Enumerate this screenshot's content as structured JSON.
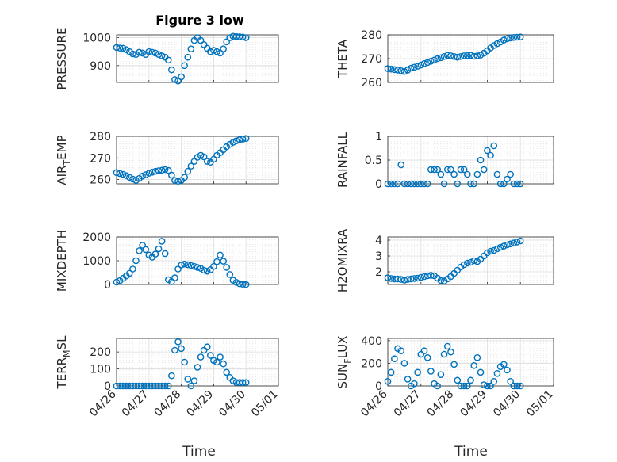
{
  "figure": {
    "title": "Figure 3 low",
    "xlabel": "Time"
  },
  "chart_data": [
    {
      "type": "scatter",
      "ylabel": "PRESSURE",
      "ylim": [
        840,
        1010
      ],
      "yticks": [
        900,
        1000
      ],
      "xlim": [
        0,
        5
      ],
      "grid": true,
      "x": [
        0,
        0.1,
        0.2,
        0.3,
        0.4,
        0.5,
        0.6,
        0.7,
        0.8,
        0.9,
        1.0,
        1.1,
        1.2,
        1.3,
        1.4,
        1.5,
        1.6,
        1.7,
        1.8,
        1.9,
        2.0,
        2.1,
        2.2,
        2.3,
        2.4,
        2.5,
        2.6,
        2.7,
        2.8,
        2.9,
        3.0,
        3.1,
        3.2,
        3.3,
        3.4,
        3.5,
        3.6,
        3.7,
        3.8,
        3.9,
        4.0
      ],
      "y": [
        965,
        963,
        962,
        957,
        950,
        942,
        940,
        948,
        945,
        940,
        950,
        948,
        945,
        940,
        935,
        930,
        920,
        885,
        850,
        845,
        860,
        900,
        930,
        960,
        990,
        1000,
        990,
        975,
        962,
        950,
        955,
        950,
        945,
        960,
        985,
        1000,
        1005,
        1004,
        1003,
        1002,
        1000
      ]
    },
    {
      "type": "scatter",
      "ylabel": "THETA",
      "ylim": [
        260,
        280
      ],
      "yticks": [
        260,
        270,
        280
      ],
      "xlim": [
        0,
        5
      ],
      "grid": true,
      "x": [
        0,
        0.1,
        0.2,
        0.3,
        0.4,
        0.5,
        0.6,
        0.7,
        0.8,
        0.9,
        1.0,
        1.1,
        1.2,
        1.3,
        1.4,
        1.5,
        1.6,
        1.7,
        1.8,
        1.9,
        2.0,
        2.1,
        2.2,
        2.3,
        2.4,
        2.5,
        2.6,
        2.7,
        2.8,
        2.9,
        3.0,
        3.1,
        3.2,
        3.3,
        3.4,
        3.5,
        3.6,
        3.7,
        3.8,
        3.9,
        4.0
      ],
      "y": [
        265.8,
        265.6,
        265.4,
        265.2,
        264.9,
        264.6,
        265.2,
        266.0,
        266.4,
        266.8,
        267.3,
        267.9,
        268.4,
        268.9,
        269.4,
        270.0,
        270.4,
        270.9,
        271.4,
        271.2,
        270.9,
        270.6,
        270.9,
        271.2,
        271.3,
        271.4,
        271.0,
        271.2,
        271.5,
        272.3,
        273.3,
        274.5,
        275.5,
        276.3,
        277.0,
        277.8,
        278.4,
        278.7,
        278.9,
        279.0,
        279.1
      ]
    },
    {
      "type": "scatter",
      "ylabel": "AIR_TEMP",
      "ylim": [
        258,
        280
      ],
      "yticks": [
        260,
        270,
        280
      ],
      "xlim": [
        0,
        5
      ],
      "grid": true,
      "x": [
        0,
        0.1,
        0.2,
        0.3,
        0.4,
        0.5,
        0.6,
        0.7,
        0.8,
        0.9,
        1.0,
        1.1,
        1.2,
        1.3,
        1.4,
        1.5,
        1.6,
        1.7,
        1.8,
        1.9,
        2.0,
        2.1,
        2.2,
        2.3,
        2.4,
        2.5,
        2.6,
        2.7,
        2.8,
        2.9,
        3.0,
        3.1,
        3.2,
        3.3,
        3.4,
        3.5,
        3.6,
        3.7,
        3.8,
        3.9,
        4.0
      ],
      "y": [
        263.2,
        262.8,
        262.4,
        261.8,
        261.0,
        260.2,
        259.6,
        260.5,
        261.6,
        262.2,
        262.9,
        263.4,
        263.8,
        264.1,
        264.3,
        264.6,
        264.2,
        262.0,
        259.6,
        259.2,
        259.6,
        261.0,
        263.8,
        266.2,
        268.4,
        270.3,
        271.2,
        270.5,
        268.4,
        268.0,
        269.4,
        271.2,
        272.4,
        273.8,
        275.2,
        276.3,
        277.2,
        277.9,
        278.4,
        278.7,
        279.0
      ]
    },
    {
      "type": "scatter",
      "ylabel": "RAINFALL",
      "ylim": [
        0,
        1
      ],
      "yticks": [
        0,
        0.5,
        1
      ],
      "xlim": [
        0,
        5
      ],
      "grid": true,
      "x": [
        0,
        0.1,
        0.2,
        0.3,
        0.4,
        0.5,
        0.6,
        0.7,
        0.8,
        0.9,
        1.0,
        1.1,
        1.2,
        1.3,
        1.4,
        1.5,
        1.6,
        1.7,
        1.8,
        1.9,
        2.0,
        2.1,
        2.2,
        2.3,
        2.4,
        2.5,
        2.6,
        2.7,
        2.8,
        2.9,
        3.0,
        3.1,
        3.2,
        3.3,
        3.4,
        3.5,
        3.6,
        3.7,
        3.8,
        3.9,
        4.0
      ],
      "y": [
        0,
        0,
        0,
        0,
        0.4,
        0,
        0,
        0,
        0,
        0,
        0,
        0,
        0,
        0.3,
        0.3,
        0.3,
        0.2,
        0,
        0.3,
        0.3,
        0.2,
        0,
        0.3,
        0.3,
        0.2,
        0,
        0,
        0.2,
        0.5,
        0.3,
        0.7,
        0.6,
        0.8,
        0.2,
        0,
        0,
        0.1,
        0.2,
        0,
        0,
        0
      ]
    },
    {
      "type": "scatter",
      "ylabel": "MIXDEPTH",
      "ylim": [
        0,
        2000
      ],
      "yticks": [
        0,
        1000,
        2000
      ],
      "xlim": [
        0,
        5
      ],
      "grid": true,
      "x": [
        0,
        0.1,
        0.2,
        0.3,
        0.4,
        0.5,
        0.6,
        0.7,
        0.8,
        0.9,
        1.0,
        1.1,
        1.2,
        1.3,
        1.4,
        1.5,
        1.6,
        1.7,
        1.8,
        1.9,
        2.0,
        2.1,
        2.2,
        2.3,
        2.4,
        2.5,
        2.6,
        2.7,
        2.8,
        2.9,
        3.0,
        3.1,
        3.2,
        3.3,
        3.4,
        3.5,
        3.6,
        3.7,
        3.8,
        3.9,
        4.0
      ],
      "y": [
        100,
        160,
        260,
        360,
        470,
        650,
        1000,
        1420,
        1650,
        1470,
        1240,
        1150,
        1280,
        1500,
        1820,
        1300,
        200,
        120,
        280,
        650,
        820,
        860,
        830,
        800,
        760,
        720,
        680,
        600,
        560,
        620,
        760,
        960,
        1240,
        980,
        720,
        420,
        180,
        90,
        30,
        10,
        0
      ]
    },
    {
      "type": "scatter",
      "ylabel": "H2OMIXRA",
      "ylim": [
        1.2,
        4.2
      ],
      "yticks": [
        2,
        3,
        4
      ],
      "xlim": [
        0,
        5
      ],
      "grid": true,
      "x": [
        0,
        0.1,
        0.2,
        0.3,
        0.4,
        0.5,
        0.6,
        0.7,
        0.8,
        0.9,
        1.0,
        1.1,
        1.2,
        1.3,
        1.4,
        1.5,
        1.6,
        1.7,
        1.8,
        1.9,
        2.0,
        2.1,
        2.2,
        2.3,
        2.4,
        2.5,
        2.6,
        2.7,
        2.8,
        2.9,
        3.0,
        3.1,
        3.2,
        3.3,
        3.4,
        3.5,
        3.6,
        3.7,
        3.8,
        3.9,
        4.0
      ],
      "y": [
        1.62,
        1.58,
        1.55,
        1.55,
        1.52,
        1.48,
        1.52,
        1.55,
        1.58,
        1.6,
        1.65,
        1.7,
        1.75,
        1.78,
        1.75,
        1.6,
        1.45,
        1.42,
        1.55,
        1.7,
        1.9,
        2.1,
        2.3,
        2.45,
        2.55,
        2.6,
        2.7,
        2.65,
        2.8,
        3.0,
        3.2,
        3.3,
        3.35,
        3.45,
        3.55,
        3.62,
        3.7,
        3.76,
        3.82,
        3.88,
        3.95
      ]
    },
    {
      "type": "scatter",
      "ylabel": "TERR_MSL",
      "ylim": [
        0,
        280
      ],
      "yticks": [
        0,
        100,
        200
      ],
      "xlim": [
        0,
        5
      ],
      "grid": true,
      "x": [
        0,
        0.1,
        0.2,
        0.3,
        0.4,
        0.5,
        0.6,
        0.7,
        0.8,
        0.9,
        1.0,
        1.1,
        1.2,
        1.3,
        1.4,
        1.5,
        1.6,
        1.7,
        1.8,
        1.9,
        2.0,
        2.1,
        2.2,
        2.3,
        2.4,
        2.5,
        2.6,
        2.7,
        2.8,
        2.9,
        3.0,
        3.1,
        3.2,
        3.3,
        3.4,
        3.5,
        3.6,
        3.7,
        3.8,
        3.9,
        4.0
      ],
      "y": [
        0,
        0,
        0,
        0,
        0,
        0,
        0,
        0,
        0,
        0,
        0,
        0,
        0,
        0,
        0,
        0,
        0,
        60,
        210,
        260,
        220,
        140,
        40,
        0,
        30,
        110,
        170,
        210,
        230,
        180,
        150,
        140,
        170,
        130,
        80,
        50,
        30,
        20,
        20,
        20,
        20
      ]
    },
    {
      "type": "scatter",
      "ylabel": "SUN_FLUX",
      "ylim": [
        0,
        420
      ],
      "yticks": [
        0,
        200,
        400
      ],
      "xlim": [
        0,
        5
      ],
      "grid": true,
      "x": [
        0,
        0.1,
        0.2,
        0.3,
        0.4,
        0.5,
        0.6,
        0.7,
        0.8,
        0.9,
        1.0,
        1.1,
        1.2,
        1.3,
        1.4,
        1.5,
        1.6,
        1.7,
        1.8,
        1.9,
        2.0,
        2.1,
        2.2,
        2.3,
        2.4,
        2.5,
        2.6,
        2.7,
        2.8,
        2.9,
        3.0,
        3.1,
        3.2,
        3.3,
        3.4,
        3.5,
        3.6,
        3.7,
        3.8,
        3.9,
        4.0
      ],
      "y": [
        40,
        120,
        240,
        330,
        310,
        200,
        60,
        0,
        20,
        120,
        280,
        310,
        250,
        130,
        20,
        0,
        100,
        280,
        350,
        300,
        190,
        50,
        0,
        0,
        0,
        50,
        180,
        250,
        120,
        10,
        0,
        0,
        40,
        110,
        170,
        190,
        140,
        40,
        0,
        0,
        0
      ]
    }
  ],
  "x_tick_labels": [
    "04/26",
    "04/27",
    "04/28",
    "04/29",
    "04/30",
    "05/01"
  ]
}
